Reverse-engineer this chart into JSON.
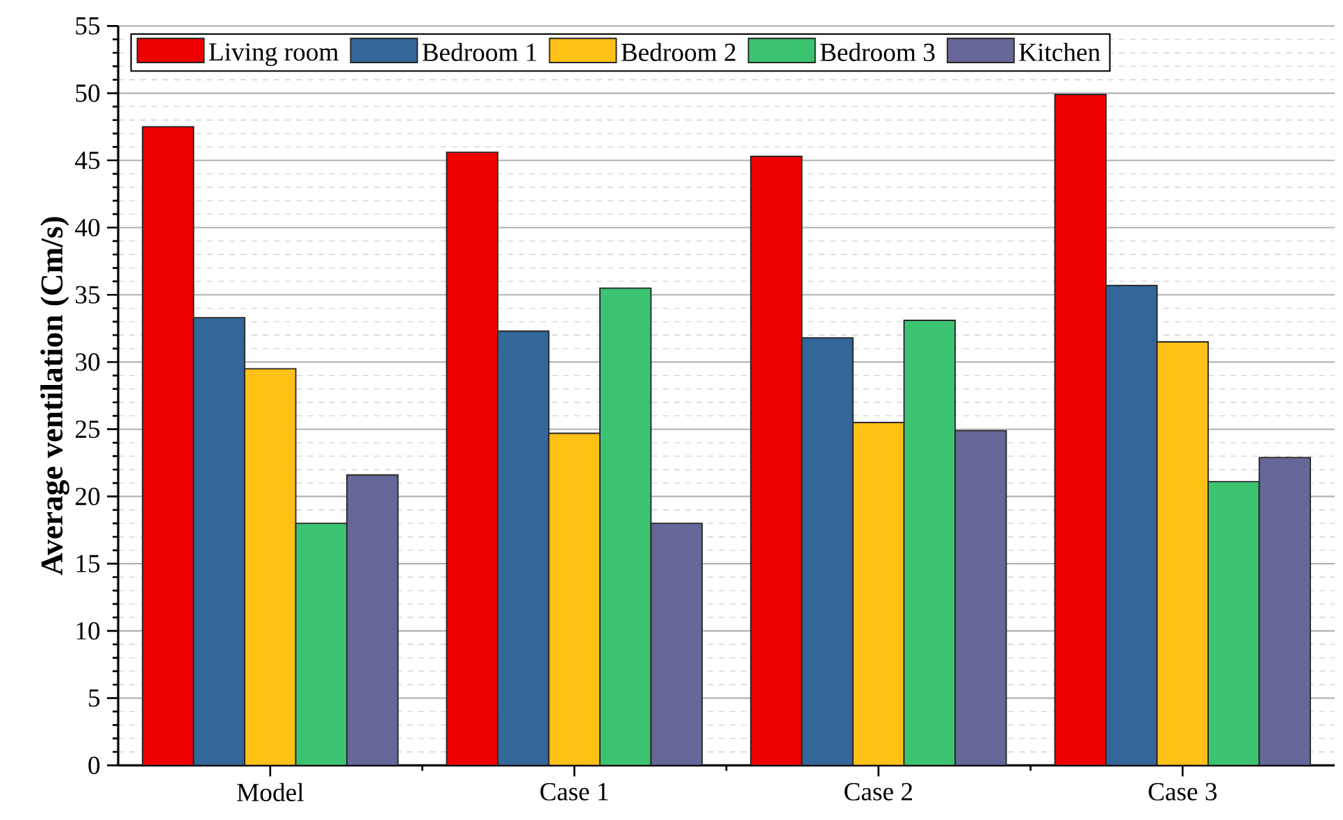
{
  "chart_data": {
    "type": "bar",
    "ylabel": "Average ventilation (Cm/s)",
    "categories": [
      "Model",
      "Case 1",
      "Case 2",
      "Case 3"
    ],
    "series": [
      {
        "name": "Living room",
        "color": "#ee0000",
        "values": [
          47.5,
          45.6,
          45.3,
          49.9
        ]
      },
      {
        "name": "Bedroom 1",
        "color": "#336699",
        "values": [
          33.3,
          32.3,
          31.8,
          35.7
        ]
      },
      {
        "name": "Bedroom 2",
        "color": "#ffc116",
        "values": [
          29.5,
          24.7,
          25.5,
          31.5
        ]
      },
      {
        "name": "Bedroom 3",
        "color": "#3cc371",
        "values": [
          18.0,
          35.5,
          33.1,
          21.1
        ]
      },
      {
        "name": "Kitchen",
        "color": "#666699",
        "values": [
          21.6,
          18.0,
          24.9,
          22.9
        ]
      }
    ],
    "ylim": [
      0,
      55
    ],
    "yticks": [
      0,
      5,
      10,
      15,
      20,
      25,
      30,
      35,
      40,
      45,
      50,
      55
    ],
    "grid": "y",
    "legend": "top"
  }
}
